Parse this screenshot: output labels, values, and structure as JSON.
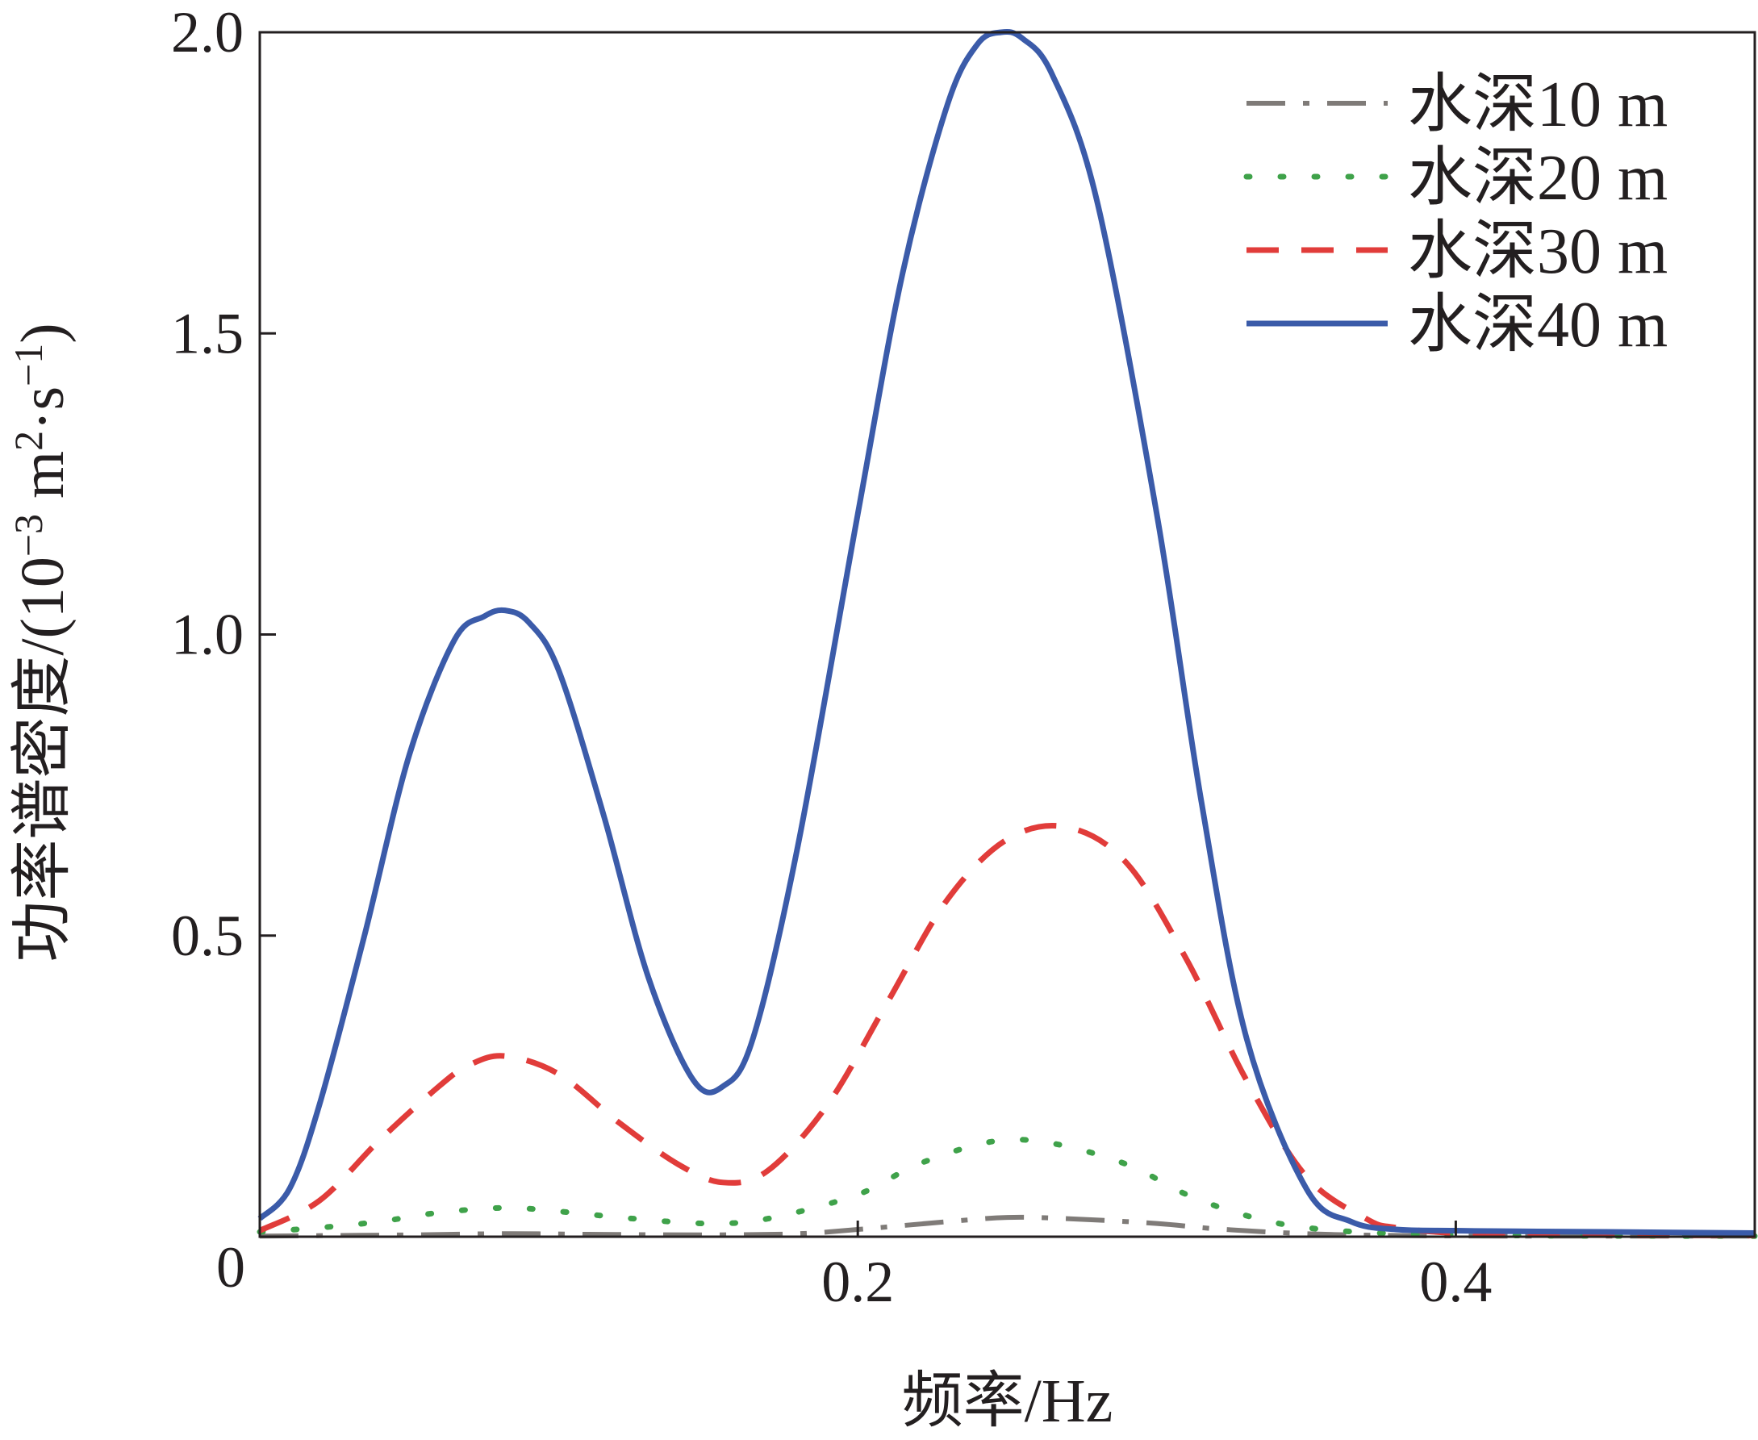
{
  "chart_data": {
    "type": "line",
    "xlabel": "频率/Hz",
    "ylabel_main": "功率谱密度/(10",
    "ylabel_exp1": "−3",
    "ylabel_mid": " m",
    "ylabel_exp2": "2",
    "ylabel_mid2": "·s",
    "ylabel_exp3": "−1",
    "ylabel_end": ")",
    "xlim": [
      0,
      0.5
    ],
    "ylim": [
      0,
      2.0
    ],
    "xticks": [
      0.2,
      0.4
    ],
    "xtick_labels": [
      "0.2",
      "0.4"
    ],
    "yticks": [
      0.5,
      1.0,
      1.5,
      2.0
    ],
    "ytick_labels": [
      "0.5",
      "1.0",
      "1.5",
      "2.0"
    ],
    "origin_label": "0",
    "legend_position": "top-right",
    "series": [
      {
        "name": "水深10 m",
        "color": "#7f7b78",
        "style": "dashdot",
        "x": [
          0,
          0.025,
          0.05,
          0.082,
          0.11,
          0.15,
          0.18,
          0.2,
          0.23,
          0.25,
          0.27,
          0.3,
          0.32,
          0.35,
          0.38,
          0.42,
          0.46,
          0.5
        ],
        "y": [
          0.001,
          0.002,
          0.003,
          0.005,
          0.004,
          0.003,
          0.005,
          0.012,
          0.025,
          0.032,
          0.03,
          0.022,
          0.013,
          0.005,
          0.002,
          0.001,
          0.001,
          0.001
        ]
      },
      {
        "name": "水深20 m",
        "color": "#3fa24a",
        "style": "dotted",
        "x": [
          0,
          0.02,
          0.04,
          0.06,
          0.082,
          0.1,
          0.125,
          0.15,
          0.17,
          0.2,
          0.22,
          0.245,
          0.265,
          0.29,
          0.31,
          0.33,
          0.35,
          0.38,
          0.42,
          0.5
        ],
        "y": [
          0.008,
          0.015,
          0.025,
          0.04,
          0.048,
          0.042,
          0.03,
          0.022,
          0.03,
          0.07,
          0.12,
          0.158,
          0.155,
          0.12,
          0.07,
          0.035,
          0.015,
          0.005,
          0.002,
          0.001
        ]
      },
      {
        "name": "水深30 m",
        "color": "#e13c3a",
        "style": "dashed",
        "x": [
          0,
          0.02,
          0.04,
          0.06,
          0.07,
          0.082,
          0.1,
          0.12,
          0.14,
          0.155,
          0.17,
          0.19,
          0.21,
          0.23,
          0.25,
          0.27,
          0.29,
          0.31,
          0.33,
          0.35,
          0.37,
          0.38,
          0.4,
          0.43,
          0.5
        ],
        "y": [
          0.01,
          0.06,
          0.16,
          0.25,
          0.285,
          0.3,
          0.27,
          0.19,
          0.12,
          0.09,
          0.11,
          0.22,
          0.39,
          0.56,
          0.66,
          0.68,
          0.62,
          0.46,
          0.26,
          0.1,
          0.03,
          0.015,
          0.006,
          0.003,
          0.002
        ]
      },
      {
        "name": "水深40 m",
        "color": "#3b5ba9",
        "style": "solid",
        "x": [
          0,
          0.01,
          0.02,
          0.035,
          0.05,
          0.065,
          0.075,
          0.082,
          0.09,
          0.1,
          0.115,
          0.13,
          0.145,
          0.155,
          0.165,
          0.18,
          0.2,
          0.215,
          0.23,
          0.24,
          0.248,
          0.255,
          0.265,
          0.28,
          0.3,
          0.315,
          0.33,
          0.35,
          0.365,
          0.38,
          0.4,
          0.42,
          0.45,
          0.5
        ],
        "y": [
          0.03,
          0.08,
          0.22,
          0.5,
          0.8,
          0.99,
          1.03,
          1.04,
          1.02,
          0.94,
          0.7,
          0.43,
          0.26,
          0.25,
          0.33,
          0.65,
          1.2,
          1.6,
          1.88,
          1.98,
          2.0,
          1.99,
          1.93,
          1.72,
          1.2,
          0.72,
          0.33,
          0.08,
          0.025,
          0.012,
          0.01,
          0.009,
          0.008,
          0.006
        ]
      }
    ]
  }
}
